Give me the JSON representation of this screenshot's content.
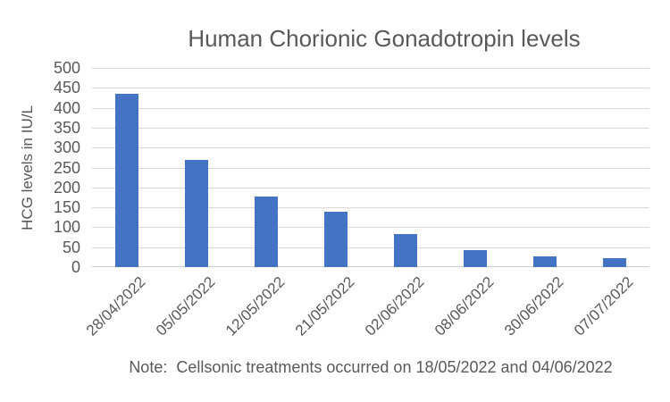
{
  "chart_data": {
    "type": "bar",
    "title": "Human Chorionic Gonadotropin levels",
    "ylabel": "HCG levels in IU/L",
    "xlabel": "",
    "note": "Note:  Cellsonic treatments occurred on 18/05/2022 and 04/06/2022",
    "categories": [
      "28/04/2022",
      "05/05/2022",
      "12/05/2022",
      "21/05/2022",
      "02/06/2022",
      "08/06/2022",
      "30/06/2022",
      "07/07/2022"
    ],
    "values": [
      435,
      270,
      178,
      138,
      83,
      43,
      27,
      22
    ],
    "ylim": [
      0,
      500
    ],
    "ytick_step": 50,
    "grid": true,
    "legend": "none",
    "colors": {
      "bar": "#4472C4",
      "gridline": "#D9D9D9",
      "axis_line": "#D0D0D0",
      "text": "#595959",
      "background": "#FFFFFF"
    }
  }
}
